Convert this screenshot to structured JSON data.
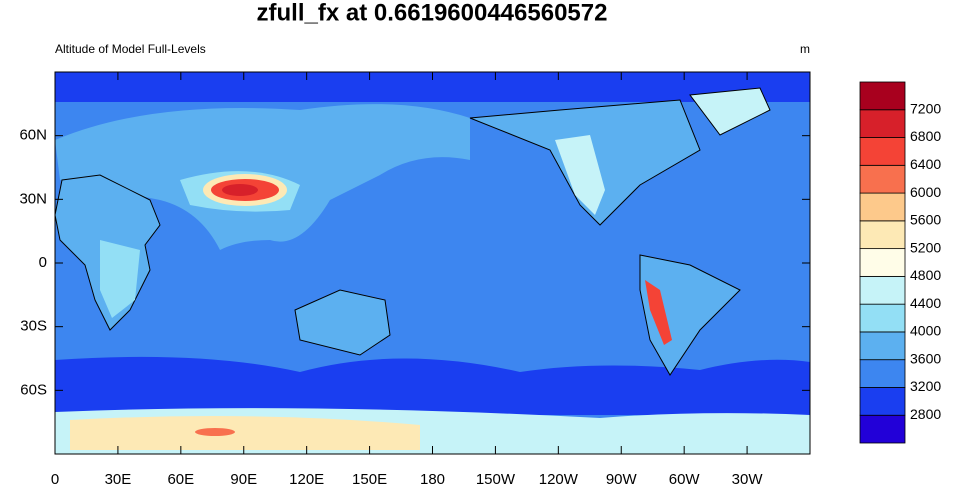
{
  "title": "zfull_fx at 0.6619600446560572",
  "left_string": "Altitude of Model Full-Levels",
  "right_string": "m",
  "map": {
    "xlim": [
      0,
      360
    ],
    "ylim": [
      -90,
      90
    ],
    "xticks": [
      0,
      {
        "value": 30,
        "label": "30E"
      },
      {
        "value": 60,
        "label": "60E"
      },
      {
        "value": 90,
        "label": "90E"
      },
      {
        "value": 120,
        "label": "120E"
      },
      {
        "value": 150,
        "label": "150E"
      },
      180,
      {
        "value": 210,
        "label": "150W"
      },
      {
        "value": 240,
        "label": "120W"
      },
      {
        "value": 270,
        "label": "90W"
      },
      {
        "value": 300,
        "label": "60W"
      },
      {
        "value": 330,
        "label": "30W"
      }
    ],
    "yticks": [
      {
        "value": -60,
        "label": "60S"
      },
      {
        "value": -30,
        "label": "30S"
      },
      0,
      {
        "value": 30,
        "label": "30N"
      },
      {
        "value": 60,
        "label": "60N"
      }
    ]
  },
  "colorbar": {
    "levels": [
      2800,
      3200,
      3600,
      4000,
      4400,
      4800,
      5200,
      5600,
      6000,
      6400,
      6800,
      7200
    ],
    "colors": [
      "#2200d8",
      "#1a3ef0",
      "#3d86f0",
      "#5cb0f0",
      "#93dff5",
      "#c6f3f8",
      "#fffde8",
      "#fde9b5",
      "#fdc98b",
      "#f8704e",
      "#f44336",
      "#d7202a",
      "#a8001e"
    ]
  }
}
